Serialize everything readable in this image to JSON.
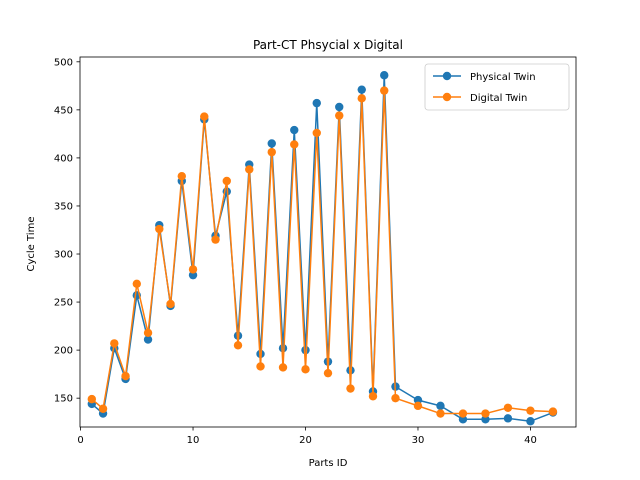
{
  "chart_data": {
    "type": "line",
    "title": "Part-CT Phsycial x Digital",
    "xlabel": "Parts ID",
    "ylabel": "Cycle Time",
    "xlim": [
      -0.05,
      44.05
    ],
    "ylim": [
      120,
      505
    ],
    "xticks": [
      0,
      10,
      20,
      30,
      40
    ],
    "yticks": [
      150,
      200,
      250,
      300,
      350,
      400,
      450,
      500
    ],
    "grid": false,
    "legend_position": "top-right",
    "x": [
      1,
      2,
      3,
      4,
      5,
      6,
      7,
      8,
      9,
      10,
      11,
      12,
      13,
      14,
      15,
      16,
      17,
      18,
      19,
      20,
      21,
      22,
      23,
      24,
      25,
      26,
      27,
      28,
      30,
      32,
      34,
      36,
      38,
      40,
      42
    ],
    "series": [
      {
        "name": "Physical Twin",
        "color": "#1f77b4",
        "values": [
          144,
          134,
          202,
          170,
          257,
          211,
          330,
          246,
          376,
          278,
          440,
          319,
          365,
          215,
          393,
          196,
          415,
          202,
          429,
          200,
          457,
          188,
          453,
          179,
          471,
          157,
          486,
          162,
          148,
          142,
          128,
          128,
          129,
          126,
          135
        ]
      },
      {
        "name": "Digital Twin",
        "color": "#ff7f0e",
        "values": [
          149,
          139,
          207,
          173,
          269,
          218,
          326,
          248,
          381,
          284,
          443,
          315,
          376,
          205,
          388,
          183,
          406,
          182,
          414,
          180,
          426,
          176,
          444,
          160,
          462,
          152,
          470,
          150,
          142,
          134,
          134,
          134,
          140,
          137,
          136
        ]
      }
    ]
  }
}
